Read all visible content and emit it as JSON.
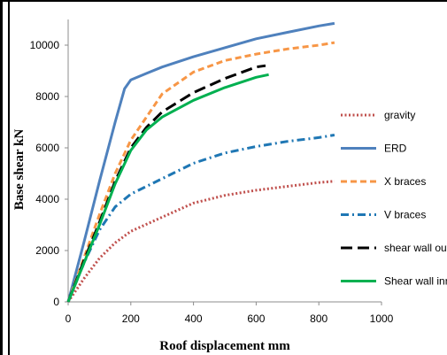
{
  "chart_data": {
    "type": "line",
    "title": "",
    "xlabel": "Roof displacement mm",
    "ylabel": "Base shear kN",
    "xlim": [
      0,
      1000
    ],
    "ylim": [
      0,
      11000
    ],
    "x_ticks": [
      "0",
      "200",
      "400",
      "600",
      "800",
      "1000"
    ],
    "y_ticks": [
      "0",
      "2000",
      "4000",
      "6000",
      "8000",
      "10000"
    ],
    "grid": false,
    "legend_position": "right",
    "series": [
      {
        "name": "gravity",
        "color": "#c0504d",
        "style": "dotted",
        "points": [
          [
            0,
            0
          ],
          [
            50,
            900
          ],
          [
            100,
            1700
          ],
          [
            150,
            2300
          ],
          [
            200,
            2750
          ],
          [
            300,
            3300
          ],
          [
            400,
            3850
          ],
          [
            500,
            4150
          ],
          [
            600,
            4350
          ],
          [
            700,
            4500
          ],
          [
            800,
            4650
          ],
          [
            850,
            4700
          ]
        ]
      },
      {
        "name": "ERD",
        "color": "#4f81bd",
        "style": "solid",
        "points": [
          [
            0,
            0
          ],
          [
            50,
            2300
          ],
          [
            100,
            4700
          ],
          [
            150,
            7000
          ],
          [
            180,
            8300
          ],
          [
            200,
            8650
          ],
          [
            250,
            8900
          ],
          [
            300,
            9150
          ],
          [
            400,
            9550
          ],
          [
            500,
            9900
          ],
          [
            600,
            10250
          ],
          [
            700,
            10500
          ],
          [
            800,
            10750
          ],
          [
            850,
            10850
          ]
        ]
      },
      {
        "name": "X braces",
        "color": "#f79646",
        "style": "dashed",
        "points": [
          [
            0,
            0
          ],
          [
            50,
            1700
          ],
          [
            100,
            3400
          ],
          [
            150,
            5000
          ],
          [
            200,
            6300
          ],
          [
            250,
            7200
          ],
          [
            300,
            8100
          ],
          [
            400,
            8950
          ],
          [
            500,
            9400
          ],
          [
            600,
            9650
          ],
          [
            700,
            9850
          ],
          [
            800,
            10000
          ],
          [
            850,
            10100
          ]
        ]
      },
      {
        "name": "V braces",
        "color": "#1f77b4",
        "style": "dashdot",
        "points": [
          [
            0,
            0
          ],
          [
            50,
            1500
          ],
          [
            100,
            2800
          ],
          [
            150,
            3700
          ],
          [
            200,
            4200
          ],
          [
            300,
            4800
          ],
          [
            400,
            5400
          ],
          [
            500,
            5800
          ],
          [
            600,
            6050
          ],
          [
            700,
            6250
          ],
          [
            800,
            6400
          ],
          [
            850,
            6500
          ]
        ]
      },
      {
        "name": "shear wall outer",
        "color": "#000000",
        "style": "longdash",
        "points": [
          [
            0,
            0
          ],
          [
            50,
            1600
          ],
          [
            100,
            3100
          ],
          [
            150,
            4700
          ],
          [
            200,
            6000
          ],
          [
            250,
            6800
          ],
          [
            300,
            7400
          ],
          [
            400,
            8150
          ],
          [
            500,
            8700
          ],
          [
            600,
            9150
          ],
          [
            630,
            9200
          ]
        ]
      },
      {
        "name": "Shear wall inner",
        "color": "#00b050",
        "style": "solid",
        "points": [
          [
            0,
            0
          ],
          [
            50,
            1500
          ],
          [
            100,
            3000
          ],
          [
            150,
            4600
          ],
          [
            200,
            5900
          ],
          [
            250,
            6700
          ],
          [
            300,
            7200
          ],
          [
            400,
            7850
          ],
          [
            500,
            8350
          ],
          [
            600,
            8750
          ],
          [
            640,
            8850
          ]
        ]
      }
    ]
  }
}
